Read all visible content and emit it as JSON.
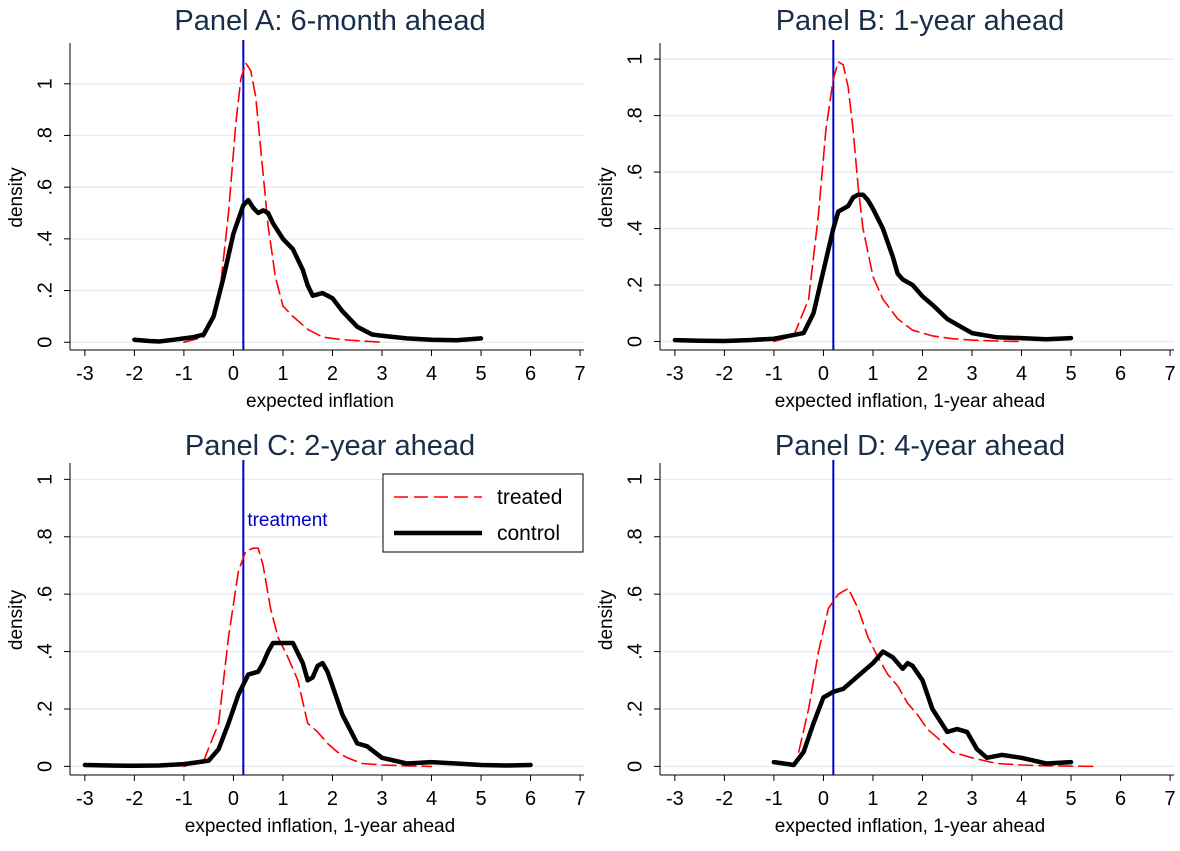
{
  "figure": {
    "legend": {
      "items": [
        {
          "label": "treated",
          "color": "#ff0000",
          "style": "dashed"
        },
        {
          "label": "control",
          "color": "#000000",
          "style": "solid-thick"
        }
      ]
    },
    "treatment_label": "treatment",
    "treatment_line_color": "#0000cc"
  },
  "chart_data": [
    {
      "type": "line",
      "title": "Panel A: 6-month ahead",
      "xlabel": "expected inflation",
      "ylabel": "density",
      "xlim": [
        -3.3,
        7.2
      ],
      "ylim": [
        -0.03,
        1.15
      ],
      "xticks": [
        "-3",
        "-2",
        "-1",
        "0",
        "1",
        "2",
        "3",
        "4",
        "5",
        "6",
        "7"
      ],
      "yticks": [
        "0",
        ".2",
        ".4",
        ".6",
        ".8",
        "1"
      ],
      "grid": true,
      "treatment_x": 0.2,
      "series": [
        {
          "name": "treated",
          "x": [
            -1,
            -0.6,
            -0.3,
            -0.1,
            0.05,
            0.15,
            0.25,
            0.35,
            0.45,
            0.55,
            0.7,
            0.85,
            1,
            1.2,
            1.5,
            1.8,
            2.2,
            2.6,
            3
          ],
          "y": [
            0,
            0.02,
            0.15,
            0.5,
            0.85,
            1.02,
            1.08,
            1.05,
            0.95,
            0.75,
            0.45,
            0.25,
            0.14,
            0.1,
            0.05,
            0.02,
            0.01,
            0.005,
            0
          ]
        },
        {
          "name": "control",
          "x": [
            -2,
            -1.7,
            -1.5,
            -1.2,
            -1,
            -0.8,
            -0.6,
            -0.4,
            -0.2,
            0,
            0.2,
            0.3,
            0.4,
            0.5,
            0.6,
            0.7,
            0.8,
            1,
            1.2,
            1.4,
            1.5,
            1.6,
            1.8,
            2,
            2.2,
            2.5,
            2.8,
            3,
            3.5,
            4,
            4.5,
            5
          ],
          "y": [
            0.01,
            0.005,
            0.003,
            0.01,
            0.015,
            0.02,
            0.03,
            0.1,
            0.25,
            0.42,
            0.53,
            0.55,
            0.52,
            0.5,
            0.51,
            0.5,
            0.46,
            0.4,
            0.36,
            0.28,
            0.22,
            0.18,
            0.19,
            0.17,
            0.12,
            0.06,
            0.03,
            0.025,
            0.015,
            0.01,
            0.008,
            0.015
          ]
        }
      ]
    },
    {
      "type": "line",
      "title": "Panel B: 1-year ahead",
      "xlabel": "expected inflation, 1-year ahead",
      "ylabel": "density",
      "xlim": [
        -3.3,
        7.2
      ],
      "ylim": [
        -0.03,
        1.05
      ],
      "xticks": [
        "-3",
        "-2",
        "-1",
        "0",
        "1",
        "2",
        "3",
        "4",
        "5",
        "6",
        "7"
      ],
      "yticks": [
        "0",
        ".2",
        ".4",
        ".6",
        ".8",
        "1"
      ],
      "grid": true,
      "treatment_x": 0.2,
      "series": [
        {
          "name": "treated",
          "x": [
            -1,
            -0.6,
            -0.3,
            -0.1,
            0.05,
            0.2,
            0.3,
            0.4,
            0.5,
            0.6,
            0.7,
            0.8,
            1,
            1.2,
            1.5,
            1.8,
            2.2,
            2.6,
            3,
            3.5,
            4
          ],
          "y": [
            0,
            0.02,
            0.15,
            0.45,
            0.75,
            0.93,
            0.99,
            0.98,
            0.9,
            0.75,
            0.55,
            0.4,
            0.23,
            0.15,
            0.08,
            0.04,
            0.02,
            0.01,
            0.005,
            0.002,
            0
          ]
        },
        {
          "name": "control",
          "x": [
            -3,
            -2.5,
            -2,
            -1.5,
            -1,
            -0.7,
            -0.4,
            -0.2,
            0,
            0.2,
            0.3,
            0.4,
            0.5,
            0.6,
            0.7,
            0.8,
            0.9,
            1,
            1.2,
            1.4,
            1.5,
            1.6,
            1.8,
            2,
            2.2,
            2.5,
            2.8,
            3,
            3.5,
            4,
            4.5,
            5
          ],
          "y": [
            0.005,
            0.003,
            0.002,
            0.005,
            0.01,
            0.02,
            0.03,
            0.1,
            0.25,
            0.4,
            0.46,
            0.47,
            0.48,
            0.51,
            0.52,
            0.52,
            0.5,
            0.47,
            0.4,
            0.3,
            0.24,
            0.22,
            0.2,
            0.16,
            0.13,
            0.08,
            0.05,
            0.03,
            0.015,
            0.012,
            0.008,
            0.012
          ]
        }
      ]
    },
    {
      "type": "line",
      "title": "Panel C: 2-year ahead",
      "xlabel": "expected inflation, 1-year ahead",
      "ylabel": "density",
      "xlim": [
        -3.3,
        7.2
      ],
      "ylim": [
        -0.03,
        1.05
      ],
      "xticks": [
        "-3",
        "-2",
        "-1",
        "0",
        "1",
        "2",
        "3",
        "4",
        "5",
        "6",
        "7"
      ],
      "yticks": [
        "0",
        ".2",
        ".4",
        ".6",
        ".8",
        "1"
      ],
      "grid": true,
      "treatment_x": 0.2,
      "series": [
        {
          "name": "treated",
          "x": [
            -1,
            -0.6,
            -0.3,
            -0.1,
            0.1,
            0.25,
            0.4,
            0.5,
            0.6,
            0.75,
            0.9,
            1.1,
            1.3,
            1.5,
            1.7,
            1.9,
            2.1,
            2.3,
            2.6,
            3,
            3.5,
            4
          ],
          "y": [
            0,
            0.02,
            0.15,
            0.45,
            0.68,
            0.75,
            0.76,
            0.76,
            0.7,
            0.55,
            0.45,
            0.38,
            0.3,
            0.15,
            0.12,
            0.08,
            0.05,
            0.03,
            0.01,
            0.005,
            0.002,
            0
          ]
        },
        {
          "name": "control",
          "x": [
            -3,
            -2.5,
            -2,
            -1.5,
            -1,
            -0.7,
            -0.5,
            -0.3,
            -0.1,
            0.1,
            0.3,
            0.5,
            0.6,
            0.7,
            0.8,
            1,
            1.2,
            1.4,
            1.5,
            1.6,
            1.7,
            1.8,
            1.9,
            2,
            2.2,
            2.5,
            2.7,
            3,
            3.5,
            4,
            4.5,
            5,
            5.5,
            6
          ],
          "y": [
            0.005,
            0.003,
            0.002,
            0.003,
            0.008,
            0.015,
            0.02,
            0.06,
            0.15,
            0.25,
            0.32,
            0.33,
            0.36,
            0.4,
            0.43,
            0.43,
            0.43,
            0.36,
            0.3,
            0.31,
            0.35,
            0.36,
            0.33,
            0.28,
            0.18,
            0.08,
            0.07,
            0.03,
            0.01,
            0.015,
            0.01,
            0.005,
            0.003,
            0.005
          ]
        }
      ]
    },
    {
      "type": "line",
      "title": "Panel D: 4-year ahead",
      "xlabel": "expected inflation, 1-year ahead",
      "ylabel": "density",
      "xlim": [
        -3.3,
        7.2
      ],
      "ylim": [
        -0.03,
        1.05
      ],
      "xticks": [
        "-3",
        "-2",
        "-1",
        "0",
        "1",
        "2",
        "3",
        "4",
        "5",
        "6",
        "7"
      ],
      "yticks": [
        "0",
        ".2",
        ".4",
        ".6",
        ".8",
        "1"
      ],
      "grid": true,
      "treatment_x": 0.2,
      "series": [
        {
          "name": "treated",
          "x": [
            -0.5,
            -0.3,
            -0.1,
            0.1,
            0.3,
            0.5,
            0.7,
            0.9,
            1.1,
            1.3,
            1.5,
            1.7,
            1.9,
            2.1,
            2.3,
            2.6,
            3,
            3.5,
            4,
            4.5,
            5,
            5.5
          ],
          "y": [
            0.05,
            0.2,
            0.4,
            0.55,
            0.6,
            0.62,
            0.55,
            0.45,
            0.38,
            0.32,
            0.28,
            0.22,
            0.18,
            0.13,
            0.1,
            0.05,
            0.03,
            0.01,
            0.005,
            0.002,
            0.001,
            0
          ]
        },
        {
          "name": "control",
          "x": [
            -1,
            -0.8,
            -0.6,
            -0.4,
            -0.2,
            0,
            0.2,
            0.4,
            0.6,
            0.8,
            1,
            1.2,
            1.4,
            1.5,
            1.6,
            1.7,
            1.8,
            2,
            2.2,
            2.5,
            2.7,
            2.9,
            3.1,
            3.3,
            3.6,
            4,
            4.5,
            5
          ],
          "y": [
            0.015,
            0.01,
            0.005,
            0.05,
            0.15,
            0.24,
            0.26,
            0.27,
            0.3,
            0.33,
            0.36,
            0.4,
            0.38,
            0.36,
            0.34,
            0.36,
            0.35,
            0.3,
            0.2,
            0.12,
            0.13,
            0.12,
            0.06,
            0.03,
            0.04,
            0.03,
            0.01,
            0.015
          ]
        }
      ]
    }
  ]
}
